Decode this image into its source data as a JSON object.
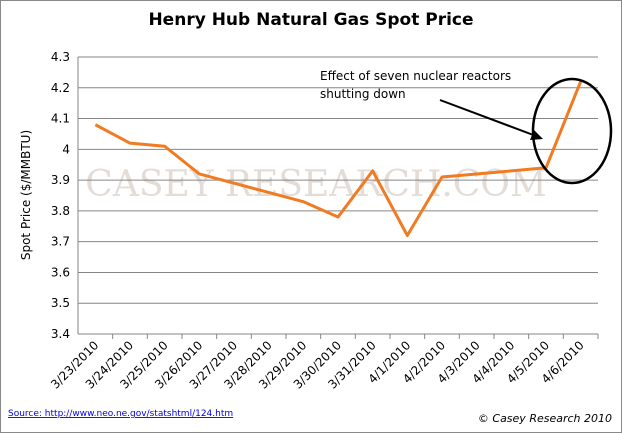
{
  "chart_data": {
    "type": "line",
    "title": "Henry Hub Natural Gas Spot Price",
    "y_label": "Spot Price ($/MMBTU)",
    "categories": [
      "3/23/2010",
      "3/24/2010",
      "3/25/2010",
      "3/26/2010",
      "3/27/2010",
      "3/28/2010",
      "3/29/2010",
      "3/30/2010",
      "3/31/2010",
      "4/1/2010",
      "4/2/2010",
      "4/3/2010",
      "4/4/2010",
      "4/5/2010",
      "4/6/2010"
    ],
    "values": [
      4.08,
      4.02,
      4.01,
      3.92,
      3.89,
      3.86,
      3.83,
      3.78,
      3.93,
      3.72,
      3.91,
      3.92,
      3.93,
      3.94,
      4.22
    ],
    "color": "#f07b22",
    "ylim": [
      3.4,
      4.3
    ],
    "yticks": [
      3.4,
      3.5,
      3.6,
      3.7,
      3.8,
      3.9,
      4,
      4.1,
      4.2,
      4.3
    ],
    "grid": true,
    "annotation": [
      "Effect of seven nuclear reactors",
      "shutting down"
    ],
    "watermark": "CASEY RESEARCH.COM",
    "source": "Source: http://www.neo.ne.gov/statshtml/124.htm",
    "credit": "© Casey Research 2010"
  }
}
